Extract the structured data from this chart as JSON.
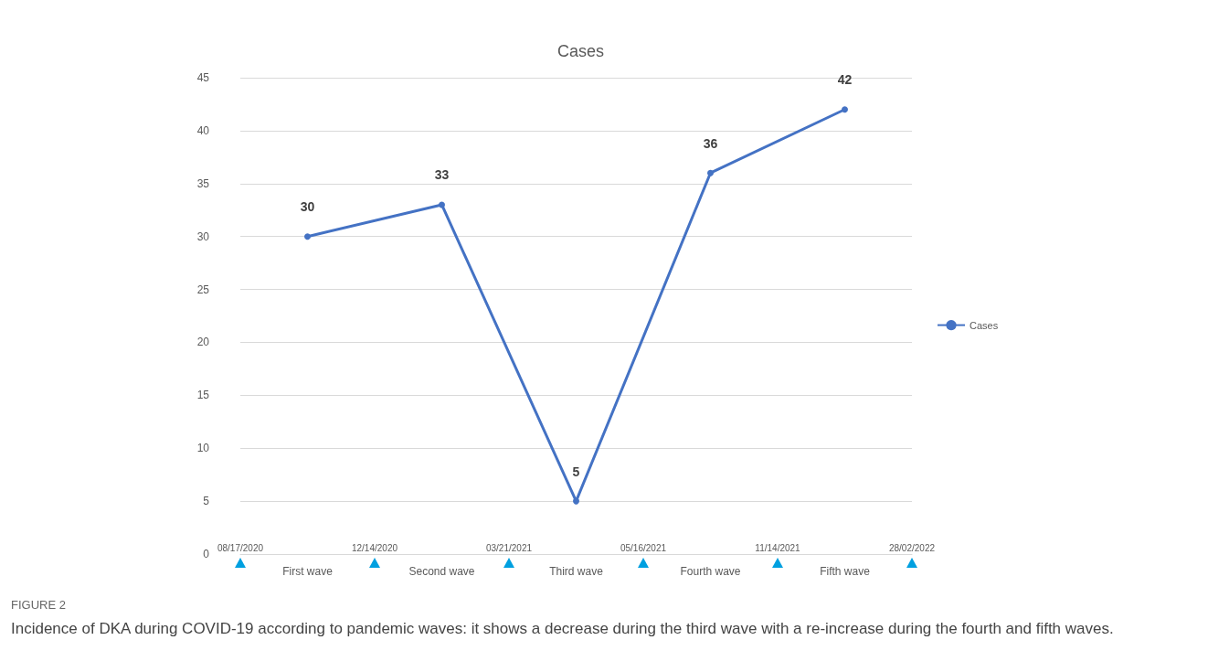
{
  "chart_data": {
    "type": "line",
    "title": "Cases",
    "categories": [
      "First wave",
      "Second wave",
      "Third wave",
      "Fourth wave",
      "Fifth wave"
    ],
    "series": [
      {
        "name": "Cases",
        "color": "#4472c4",
        "values": [
          30,
          33,
          5,
          36,
          42
        ]
      }
    ],
    "ylim": [
      0,
      45
    ],
    "yticks": [
      0,
      5,
      10,
      15,
      20,
      25,
      30,
      35,
      40,
      45
    ],
    "grid": "y",
    "legend": "right",
    "marker": "circle",
    "data_labels": true,
    "annotations": [
      "08/17/2020",
      "12/14/2020",
      "03/21/2021",
      "05/16/2021",
      "11/14/2021",
      "28/02/2022",
      "FIGURE 2",
      "Incidence of DKA during COVID-19 according to pandemic waves: it shows a decrease during the third wave with a re-increase during the fourth and fifth waves."
    ]
  }
}
